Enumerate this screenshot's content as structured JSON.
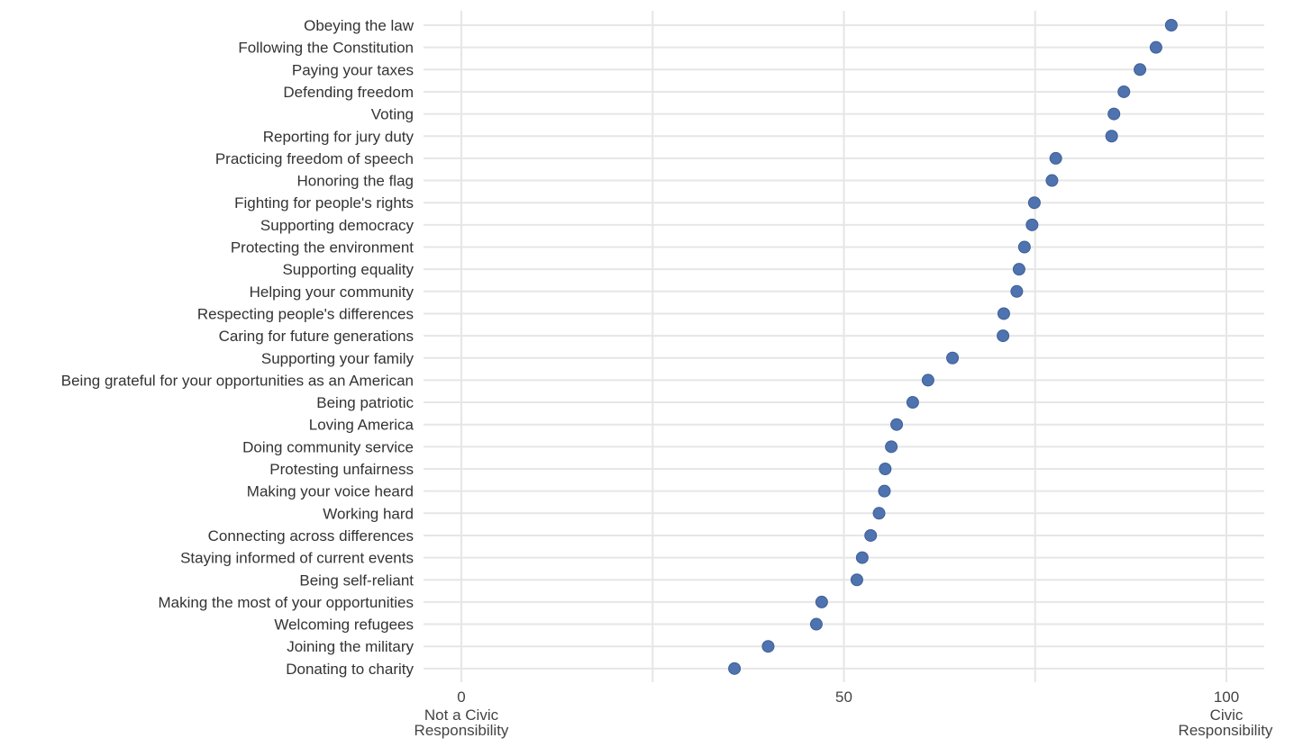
{
  "chart_data": {
    "type": "scatter",
    "categories": [
      "Obeying the law",
      "Following the Constitution",
      "Paying your taxes",
      "Defending freedom",
      "Voting",
      "Reporting for jury duty",
      "Practicing freedom of speech",
      "Honoring the flag",
      "Fighting for people's rights",
      "Supporting democracy",
      "Protecting the environment",
      "Supporting equality",
      "Helping your community",
      "Respecting people's differences",
      "Caring for future generations",
      "Supporting your family",
      "Being grateful for your opportunities as an American",
      "Being patriotic",
      "Loving America",
      "Doing community service",
      "Protesting unfairness",
      "Making your voice heard",
      "Working hard",
      "Connecting across differences",
      "Staying informed of current events",
      "Being self-reliant",
      "Making the most of your opportunities",
      "Welcoming refugees",
      "Joining the military",
      "Donating to charity"
    ],
    "values": [
      92.8,
      90.8,
      88.7,
      86.6,
      85.3,
      85.0,
      77.7,
      77.2,
      74.9,
      74.6,
      73.6,
      72.9,
      72.6,
      70.9,
      70.8,
      64.2,
      61.0,
      59.0,
      56.9,
      56.2,
      55.4,
      55.3,
      54.6,
      53.5,
      52.4,
      51.7,
      47.1,
      46.4,
      40.1,
      35.7
    ],
    "xlim": [
      0,
      105
    ],
    "x_ticks": [
      0,
      50,
      100
    ],
    "x_tick_labels": [
      "0",
      "50",
      "100"
    ],
    "x_minor_grid": [
      25,
      75
    ],
    "x_end_labels": {
      "left": [
        "Not a Civic",
        "Responsibility"
      ],
      "right": [
        "Civic",
        "Responsibility"
      ]
    },
    "grid": true,
    "point_color": "#4e73ae"
  }
}
